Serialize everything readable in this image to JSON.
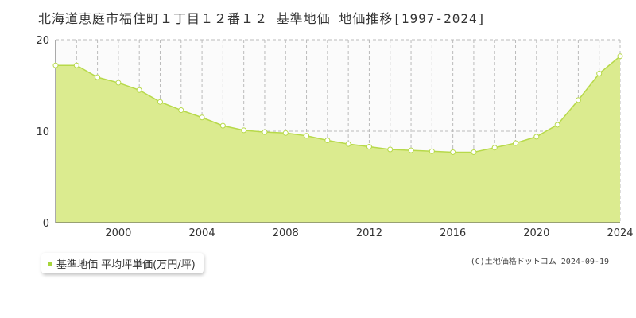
{
  "title": "北海道恵庭市福住町１丁目１２番１２ 基準地価 地価推移[1997-2024]",
  "legend_label": "基準地価 平均坪単価(万円/坪)",
  "credit": "(C)土地価格ドットコム 2024-09-19",
  "colors": {
    "fill": "#dbeb8f",
    "line": "#b7d94a",
    "marker_stroke": "#b7d94a",
    "grid": "#bbbbbb"
  },
  "chart_data": {
    "type": "area",
    "title": "北海道恵庭市福住町１丁目１２番１２ 基準地価 地価推移[1997-2024]",
    "xlabel": "",
    "ylabel": "",
    "xlim": [
      1997,
      2024
    ],
    "ylim": [
      0,
      20
    ],
    "yticks": [
      0,
      10,
      20
    ],
    "xticks": [
      2000,
      2004,
      2008,
      2012,
      2016,
      2020,
      2024
    ],
    "grid": true,
    "legend": "bottom-left",
    "series": [
      {
        "name": "基準地価 平均坪単価(万円/坪)",
        "x": [
          1997,
          1998,
          1999,
          2000,
          2001,
          2002,
          2003,
          2004,
          2005,
          2006,
          2007,
          2008,
          2009,
          2010,
          2011,
          2012,
          2013,
          2014,
          2015,
          2016,
          2017,
          2018,
          2019,
          2020,
          2021,
          2022,
          2023,
          2024
        ],
        "values": [
          17.2,
          17.2,
          15.9,
          15.3,
          14.5,
          13.2,
          12.3,
          11.5,
          10.6,
          10.1,
          9.9,
          9.8,
          9.5,
          9.0,
          8.6,
          8.3,
          8.0,
          7.9,
          7.8,
          7.7,
          7.7,
          8.2,
          8.7,
          9.4,
          10.7,
          13.4,
          16.3,
          18.2
        ]
      }
    ]
  }
}
